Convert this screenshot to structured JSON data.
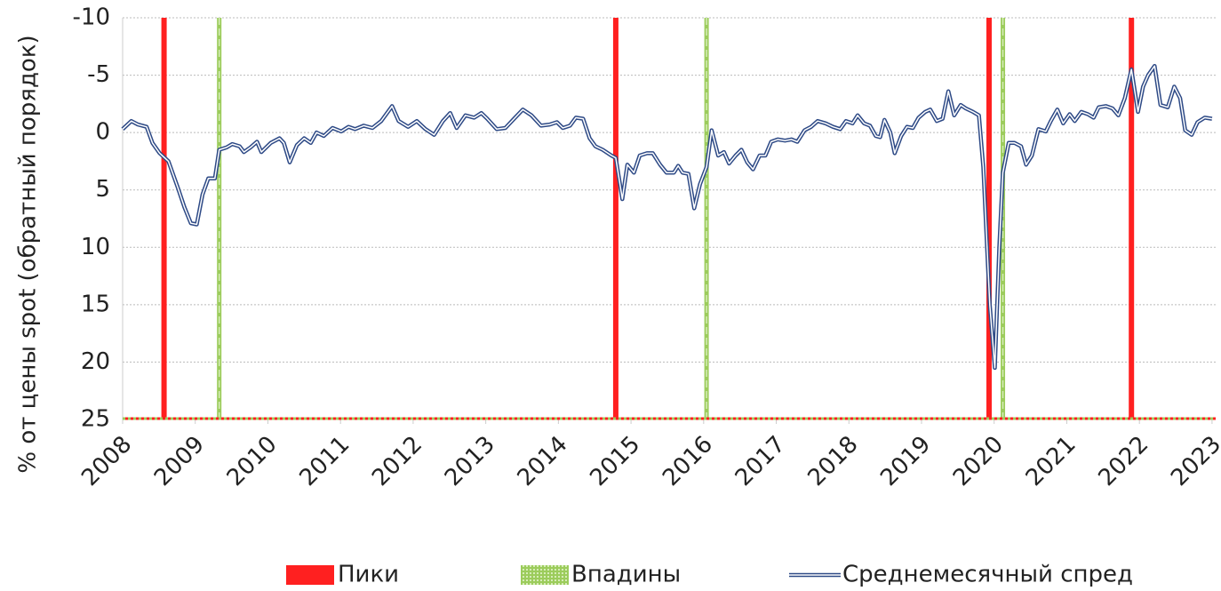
{
  "chart_data": {
    "type": "line",
    "y_label": "% от цены spot (обратный порядок)",
    "xlim": [
      2008,
      2023.05
    ],
    "xticks": [
      2008,
      2009,
      2010,
      2011,
      2012,
      2013,
      2014,
      2015,
      2016,
      2017,
      2018,
      2019,
      2020,
      2021,
      2022,
      2023
    ],
    "ylim": [
      -10,
      25
    ],
    "y_inverted": true,
    "yticks": [
      -10,
      -5,
      0,
      5,
      10,
      15,
      20,
      25
    ],
    "grid": true,
    "legend": "bottom",
    "peaks": {
      "name": "Пики",
      "color": "#ff2020",
      "x": [
        2008.57,
        2014.79,
        2019.93,
        2021.89
      ]
    },
    "troughs": {
      "name": "Впадины",
      "color": "#9ccc5c",
      "x": [
        2009.33,
        2016.04,
        2020.12
      ]
    },
    "series": [
      {
        "name": "Среднемесячный спред",
        "color": "#2e4a86",
        "x": [
          2008.0,
          2008.12,
          2008.21,
          2008.33,
          2008.41,
          2008.51,
          2008.63,
          2008.76,
          2008.85,
          2008.94,
          2009.02,
          2009.1,
          2009.18,
          2009.27,
          2009.33,
          2009.43,
          2009.51,
          2009.61,
          2009.67,
          2009.76,
          2009.85,
          2009.91,
          2010.04,
          2010.16,
          2010.22,
          2010.3,
          2010.4,
          2010.5,
          2010.59,
          2010.67,
          2010.77,
          2010.89,
          2011.01,
          2011.11,
          2011.2,
          2011.32,
          2011.44,
          2011.56,
          2011.71,
          2011.8,
          2011.93,
          2012.05,
          2012.17,
          2012.29,
          2012.41,
          2012.51,
          2012.6,
          2012.72,
          2012.84,
          2012.94,
          2013.02,
          2013.15,
          2013.27,
          2013.39,
          2013.51,
          2013.63,
          2013.76,
          2013.88,
          2013.98,
          2014.06,
          2014.16,
          2014.24,
          2014.34,
          2014.43,
          2014.51,
          2014.61,
          2014.73,
          2014.79,
          2014.88,
          2014.95,
          2015.04,
          2015.12,
          2015.22,
          2015.3,
          2015.4,
          2015.49,
          2015.59,
          2015.65,
          2015.71,
          2015.79,
          2015.87,
          2015.95,
          2016.04,
          2016.11,
          2016.2,
          2016.28,
          2016.35,
          2016.44,
          2016.52,
          2016.6,
          2016.68,
          2016.77,
          2016.85,
          2016.93,
          2017.02,
          2017.12,
          2017.21,
          2017.29,
          2017.39,
          2017.48,
          2017.57,
          2017.68,
          2017.78,
          2017.88,
          2017.96,
          2018.05,
          2018.12,
          2018.21,
          2018.29,
          2018.37,
          2018.43,
          2018.49,
          2018.57,
          2018.63,
          2018.72,
          2018.8,
          2018.88,
          2018.96,
          2019.05,
          2019.12,
          2019.21,
          2019.29,
          2019.37,
          2019.45,
          2019.54,
          2019.61,
          2019.71,
          2019.79,
          2019.85,
          2019.94,
          2020.01,
          2020.07,
          2020.12,
          2020.2,
          2020.28,
          2020.37,
          2020.44,
          2020.52,
          2020.61,
          2020.71,
          2020.78,
          2020.87,
          2020.95,
          2021.04,
          2021.11,
          2021.2,
          2021.29,
          2021.37,
          2021.44,
          2021.54,
          2021.63,
          2021.71,
          2021.8,
          2021.89,
          2021.98,
          2022.05,
          2022.12,
          2022.21,
          2022.29,
          2022.39,
          2022.48,
          2022.56,
          2022.63,
          2022.72,
          2022.8,
          2022.9,
          2023.0
        ],
        "values": [
          -0.3,
          -1.0,
          -0.7,
          -0.5,
          0.9,
          1.8,
          2.5,
          4.8,
          6.5,
          7.9,
          8.0,
          5.4,
          4.0,
          4.0,
          1.5,
          1.3,
          1.0,
          1.2,
          1.7,
          1.3,
          0.8,
          1.7,
          0.9,
          0.5,
          0.9,
          2.6,
          1.1,
          0.5,
          0.9,
          0.0,
          0.3,
          -0.4,
          -0.1,
          -0.5,
          -0.3,
          -0.6,
          -0.4,
          -1.0,
          -2.3,
          -1.0,
          -0.5,
          -1.0,
          -0.3,
          0.2,
          -1.0,
          -1.7,
          -0.4,
          -1.5,
          -1.3,
          -1.7,
          -1.2,
          -0.3,
          -0.4,
          -1.2,
          -2.0,
          -1.5,
          -0.6,
          -0.7,
          -0.9,
          -0.4,
          -0.6,
          -1.3,
          -1.2,
          0.5,
          1.2,
          1.5,
          2.0,
          2.2,
          5.8,
          2.8,
          3.5,
          2.0,
          1.8,
          1.8,
          2.8,
          3.5,
          3.5,
          2.9,
          3.5,
          3.6,
          6.6,
          4.5,
          3.0,
          -0.2,
          2.0,
          1.7,
          2.7,
          2.0,
          1.5,
          2.6,
          3.2,
          2.0,
          2.0,
          0.8,
          0.6,
          0.7,
          0.6,
          0.8,
          -0.2,
          -0.5,
          -1.0,
          -0.8,
          -0.5,
          -0.3,
          -1.0,
          -0.8,
          -1.5,
          -0.8,
          -0.6,
          0.3,
          0.4,
          -1.1,
          0.0,
          1.8,
          0.3,
          -0.5,
          -0.4,
          -1.3,
          -1.8,
          -2.0,
          -1.0,
          -1.2,
          -3.6,
          -1.5,
          -2.4,
          -2.1,
          -1.8,
          -1.5,
          3.0,
          15.0,
          20.5,
          10.0,
          3.5,
          0.9,
          0.9,
          1.2,
          2.8,
          2.0,
          -0.3,
          -0.1,
          -1.0,
          -2.0,
          -0.8,
          -1.6,
          -1.0,
          -1.8,
          -1.6,
          -1.3,
          -2.2,
          -2.3,
          -2.1,
          -1.5,
          -3.0,
          -5.5,
          -1.8,
          -4.0,
          -5.0,
          -5.8,
          -2.4,
          -2.2,
          -4.0,
          -3.0,
          -0.2,
          0.2,
          -0.9,
          -1.3,
          -1.2
        ]
      }
    ]
  }
}
